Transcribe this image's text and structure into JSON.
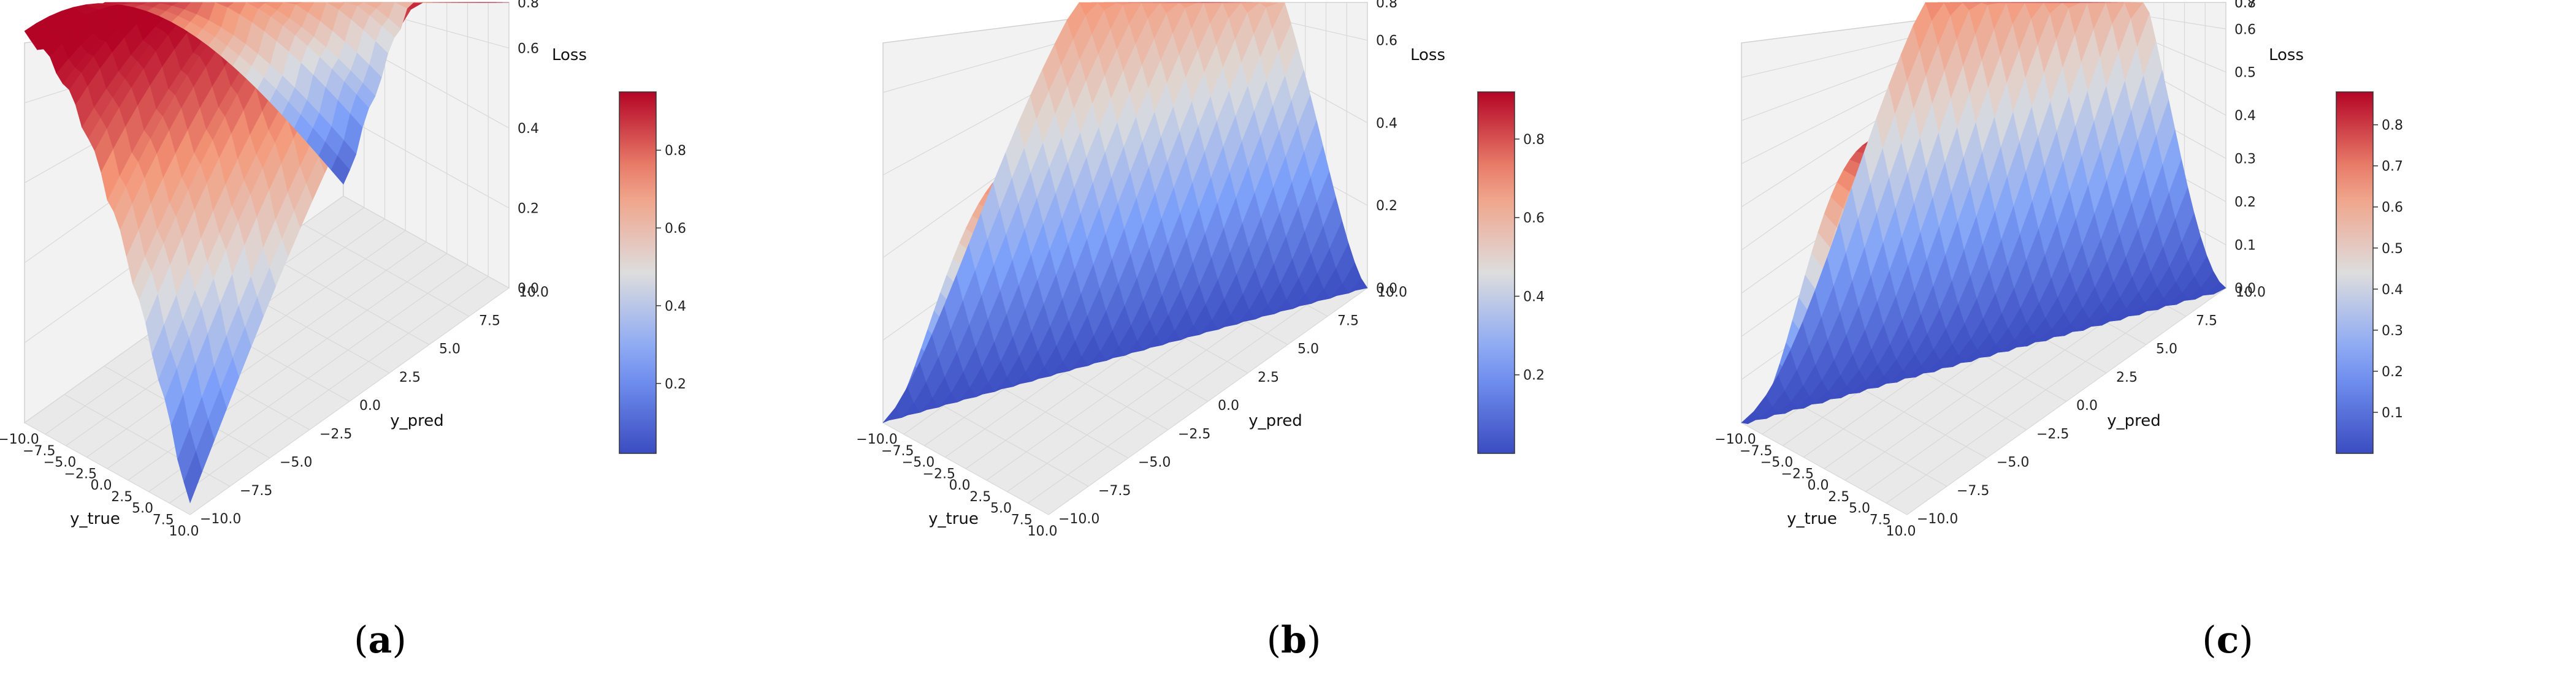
{
  "chart_data": [
    {
      "type": "surface",
      "panel_label": "a",
      "xlabel": "y_true",
      "ylabel": "y_pred",
      "zlabel": "Loss",
      "xlim": [
        -10,
        10
      ],
      "ylim": [
        -10,
        10
      ],
      "zlim": [
        0,
        0.95
      ],
      "x_ticks": [
        "−10.0",
        "−7.5",
        "−5.0",
        "−2.5",
        "0.0",
        "2.5",
        "5.0",
        "7.5",
        "10.0"
      ],
      "y_ticks": [
        "−10.0",
        "−7.5",
        "−5.0",
        "−2.5",
        "0.0",
        "2.5",
        "5.0",
        "7.5",
        "10.0"
      ],
      "z_ticks": [
        "0.0",
        "0.2",
        "0.4",
        "0.6",
        "0.8"
      ],
      "colorbar": {
        "colormap": "coolwarm",
        "range": [
          0.02,
          0.95
        ],
        "ticks": [
          "0.2",
          "0.4",
          "0.6",
          "0.8"
        ]
      },
      "shape": "cos"
    },
    {
      "type": "surface",
      "panel_label": "b",
      "xlabel": "y_true",
      "ylabel": "y_pred",
      "zlabel": "Loss",
      "xlim": [
        -10,
        10
      ],
      "ylim": [
        -10,
        10
      ],
      "zlim": [
        0,
        0.92
      ],
      "x_ticks": [
        "−10.0",
        "−7.5",
        "−5.0",
        "−2.5",
        "0.0",
        "2.5",
        "5.0",
        "7.5",
        "10.0"
      ],
      "y_ticks": [
        "−10.0",
        "−7.5",
        "−5.0",
        "−2.5",
        "0.0",
        "2.5",
        "5.0",
        "7.5",
        "10.0"
      ],
      "z_ticks": [
        "0.0",
        "0.2",
        "0.4",
        "0.6",
        "0.8"
      ],
      "colorbar": {
        "colormap": "coolwarm",
        "range": [
          0.0,
          0.92
        ],
        "ticks": [
          "0.2",
          "0.4",
          "0.6",
          "0.8"
        ]
      },
      "shape": "smooth"
    },
    {
      "type": "surface",
      "panel_label": "c",
      "xlabel": "y_true",
      "ylabel": "y_pred",
      "zlabel": "Loss",
      "xlim": [
        -10,
        10
      ],
      "ylim": [
        -10,
        10
      ],
      "zlim": [
        0,
        0.88
      ],
      "x_ticks": [
        "−10.0",
        "−7.5",
        "−5.0",
        "−2.5",
        "0.0",
        "2.5",
        "5.0",
        "7.5",
        "10.0"
      ],
      "y_ticks": [
        "−10.0",
        "−7.5",
        "−5.0",
        "−2.5",
        "0.0",
        "2.5",
        "5.0",
        "7.5",
        "10.0"
      ],
      "z_ticks": [
        "0.0",
        "0.1",
        "0.2",
        "0.3",
        "0.4",
        "0.5",
        "0.6",
        "0.7",
        "0.8"
      ],
      "colorbar": {
        "colormap": "coolwarm",
        "range": [
          0.0,
          0.88
        ],
        "ticks": [
          "0.1",
          "0.2",
          "0.3",
          "0.4",
          "0.5",
          "0.6",
          "0.7",
          "0.8"
        ]
      },
      "shape": "gauss"
    }
  ],
  "captions": {
    "a": {
      "open": "(",
      "letter": "a",
      "close": ")"
    },
    "b": {
      "open": "(",
      "letter": "b",
      "close": ")"
    },
    "c": {
      "open": "(",
      "letter": "c",
      "close": ")"
    }
  }
}
